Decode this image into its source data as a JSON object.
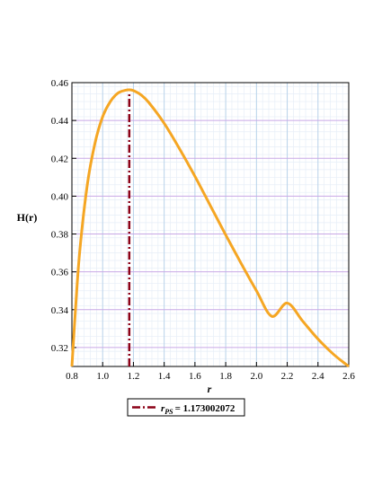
{
  "chart_data": {
    "type": "line",
    "title": "",
    "xlabel": "r",
    "ylabel": "H(r)",
    "xlim": [
      0.8,
      2.6
    ],
    "ylim": [
      0.31,
      0.46
    ],
    "x_ticks": [
      0.8,
      1.0,
      1.2,
      1.4,
      1.6,
      1.8,
      2.0,
      2.2,
      2.4,
      2.6
    ],
    "x_tick_labels": [
      "0.8",
      "1.0",
      "1.2",
      "1.4",
      "1.6",
      "1.8",
      "2.0",
      "2.2",
      "2.4",
      "2.6"
    ],
    "y_ticks": [
      0.32,
      0.34,
      0.36,
      0.38,
      0.4,
      0.42,
      0.44,
      0.46
    ],
    "y_tick_labels": [
      "0.32",
      "0.34",
      "0.36",
      "0.38",
      "0.40",
      "0.42",
      "0.44",
      "0.46"
    ],
    "grid": true,
    "legend_position": "bottom",
    "series": [
      {
        "color": "#f5a623",
        "style": "solid",
        "x": [
          0.8,
          0.82,
          0.85,
          0.9,
          0.95,
          1.0,
          1.05,
          1.1,
          1.15,
          1.173,
          1.2,
          1.25,
          1.3,
          1.4,
          1.5,
          1.6,
          1.7,
          1.8,
          1.9,
          2.0,
          2.1,
          2.2,
          2.3,
          2.4,
          2.5,
          2.6
        ],
        "y": [
          0.31,
          0.336,
          0.37,
          0.406,
          0.428,
          0.442,
          0.45,
          0.4545,
          0.456,
          0.4562,
          0.4558,
          0.4535,
          0.4495,
          0.4385,
          0.425,
          0.4105,
          0.395,
          0.3795,
          0.3645,
          0.35,
          0.3365,
          0.3435,
          0.334,
          0.3245,
          0.3165,
          0.31
        ]
      }
    ],
    "vline": {
      "x": 1.173002072,
      "color": "#8b0016",
      "style": "dashdot",
      "legend_symbol": "r",
      "legend_subscript": "PS",
      "legend_value": "= 1.173002072"
    }
  }
}
